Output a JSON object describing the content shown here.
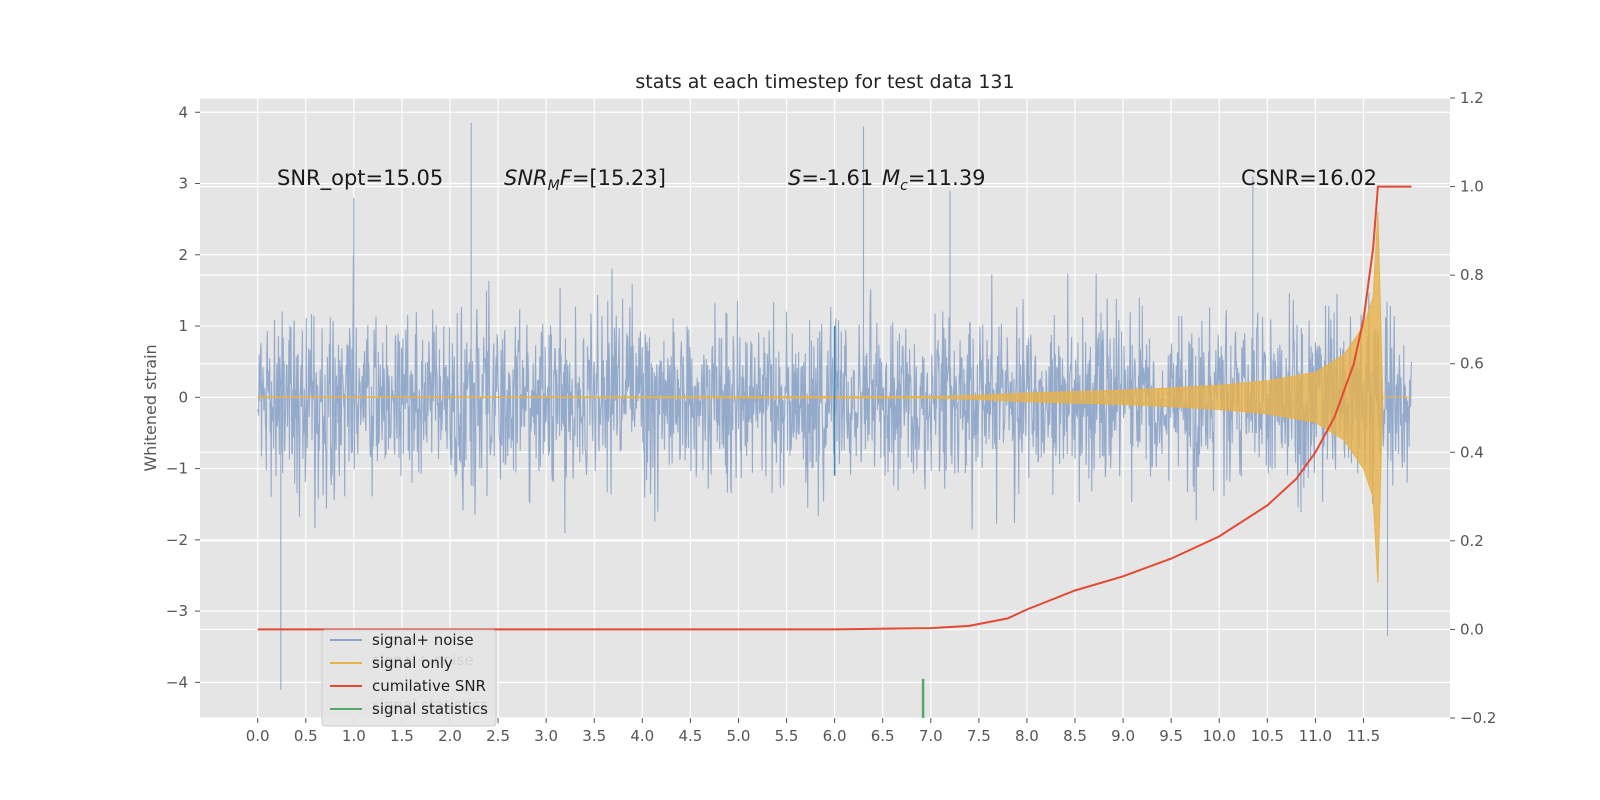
{
  "chart_data": {
    "type": "line",
    "title": "stats at each timestep for test data 131",
    "ylabel": "Whitened strain",
    "xlabel": "",
    "xlim": [
      -0.6,
      12.4
    ],
    "ylim": [
      -4.5,
      4.2
    ],
    "y2lim": [
      -0.2,
      1.2
    ],
    "x_ticks": [
      0.0,
      0.5,
      1.0,
      1.5,
      2.0,
      2.5,
      3.0,
      3.5,
      4.0,
      4.5,
      5.0,
      5.5,
      6.0,
      6.5,
      7.0,
      7.5,
      8.0,
      8.5,
      9.0,
      9.5,
      10.0,
      10.5,
      11.0,
      11.5
    ],
    "x_tick_labels": [
      "0.0",
      "0.5",
      "1.0",
      "1.5",
      "2.0",
      "2.5",
      "3.0",
      "3.5",
      "4.0",
      "4.5",
      "5.0",
      "5.5",
      "6.0",
      "6.5",
      "7.0",
      "7.5",
      "8.0",
      "8.5",
      "9.0",
      "9.5",
      "10.0",
      "10.5",
      "11.0",
      "11.5"
    ],
    "y_ticks": [
      -4,
      -3,
      -2,
      -1,
      0,
      1,
      2,
      3,
      4
    ],
    "y_tick_labels": [
      "−4",
      "−3",
      "−2",
      "−1",
      "0",
      "1",
      "2",
      "3",
      "4"
    ],
    "y2_ticks": [
      -0.2,
      0.0,
      0.2,
      0.4,
      0.6,
      0.8,
      1.0,
      1.2
    ],
    "y2_tick_labels": [
      "−0.2",
      "0.0",
      "0.2",
      "0.4",
      "0.6",
      "0.8",
      "1.0",
      "1.2"
    ],
    "grid": true,
    "legend_position": "lower-left",
    "series": [
      {
        "name": "signal+ noise",
        "color": "#8fa6c9",
        "kind": "noise",
        "x_range": [
          0.0,
          12.0
        ],
        "typical_amplitude": 1.7,
        "max_value": 3.85,
        "min_value": -4.1
      },
      {
        "name": "signal only",
        "color": "#e7b24a",
        "kind": "chirp-envelope",
        "envelope": {
          "x": [
            0.0,
            7.0,
            7.5,
            8.0,
            8.5,
            9.0,
            9.5,
            10.0,
            10.5,
            11.0,
            11.3,
            11.5,
            11.6,
            11.65,
            11.7,
            12.0
          ],
          "amplitude": [
            0.0,
            0.01,
            0.03,
            0.06,
            0.08,
            0.1,
            0.13,
            0.17,
            0.23,
            0.35,
            0.6,
            1.0,
            1.4,
            2.6,
            0.0,
            0.0
          ]
        }
      },
      {
        "name": "cumilative SNR",
        "color": "#e24a33",
        "axis": "right",
        "x": [
          0.0,
          1.0,
          2.0,
          3.0,
          4.0,
          5.0,
          6.0,
          7.0,
          7.4,
          7.8,
          8.0,
          8.5,
          9.0,
          9.5,
          10.0,
          10.5,
          10.8,
          11.0,
          11.2,
          11.4,
          11.5,
          11.6,
          11.65,
          11.7,
          11.8,
          12.0
        ],
        "values": [
          0.0,
          0.0,
          0.0,
          0.0,
          0.0,
          0.0,
          0.0,
          0.003,
          0.008,
          0.025,
          0.045,
          0.088,
          0.12,
          0.16,
          0.21,
          0.28,
          0.34,
          0.4,
          0.48,
          0.6,
          0.7,
          0.86,
          1.0,
          1.0,
          1.0,
          1.0
        ]
      },
      {
        "name": "signal statistics",
        "color": "#348abd",
        "kind": "vline",
        "x": 6.0,
        "y_range": [
          -1.1,
          1.0
        ]
      },
      {
        "name": "signal statistics",
        "color": "#55a868",
        "kind": "vline",
        "x": 6.92,
        "y_range": [
          -4.5,
          -3.95
        ]
      }
    ],
    "annotations": [
      {
        "text": "SNR_opt=15.05",
        "x": 0.2,
        "y": 3.0
      },
      {
        "text": "SNR_MF=[15.23]",
        "x": 2.6,
        "y": 3.0
      },
      {
        "text": "S=-1.61",
        "x": 5.6,
        "y": 3.0
      },
      {
        "text": "M_c=11.39",
        "x": 6.6,
        "y": 3.0
      },
      {
        "text": "CSNR=16.02",
        "x": 10.4,
        "y": 3.0
      }
    ],
    "ghost_legend_labels": [
      "signal only",
      "signal+ noise",
      "signal statistics"
    ],
    "colors": {
      "plot_bg": "#e5e5e5",
      "grid": "#ffffff",
      "noise": "#8fa6c9",
      "signal": "#e7b24a",
      "csnr": "#e24a33",
      "stat_blue": "#348abd",
      "stat_green": "#55a868"
    }
  }
}
